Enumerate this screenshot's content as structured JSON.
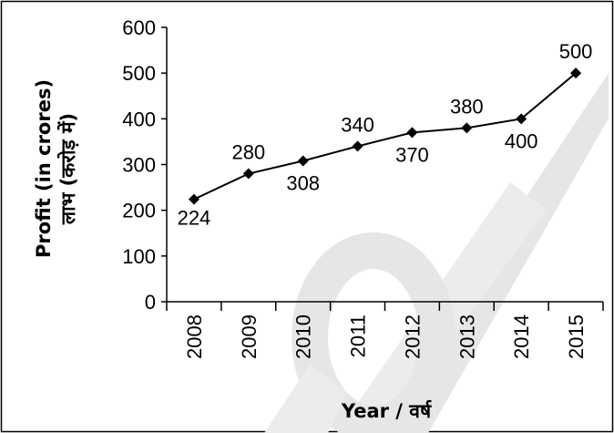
{
  "chart_data": {
    "type": "line",
    "x": [
      "2008",
      "2009",
      "2010",
      "2011",
      "2012",
      "2013",
      "2014",
      "2015"
    ],
    "series": [
      {
        "values": [
          224,
          280,
          308,
          340,
          370,
          380,
          400,
          500
        ]
      }
    ],
    "data_labels": [
      "224",
      "280",
      "308",
      "340",
      "370",
      "380",
      "400",
      "500"
    ],
    "ylabel_line1": "Profit (in crores)",
    "ylabel_line2": "लाभ (करोड़ में)",
    "xlabel": "Year / वर्ष",
    "ylim": [
      0,
      600
    ],
    "yticks": [
      "0",
      "100",
      "200",
      "300",
      "400",
      "500",
      "600"
    ],
    "grid": false,
    "legend": "none",
    "line_color": "#000000",
    "marker": "diamond",
    "watermark_color": "#e5e5e5"
  }
}
